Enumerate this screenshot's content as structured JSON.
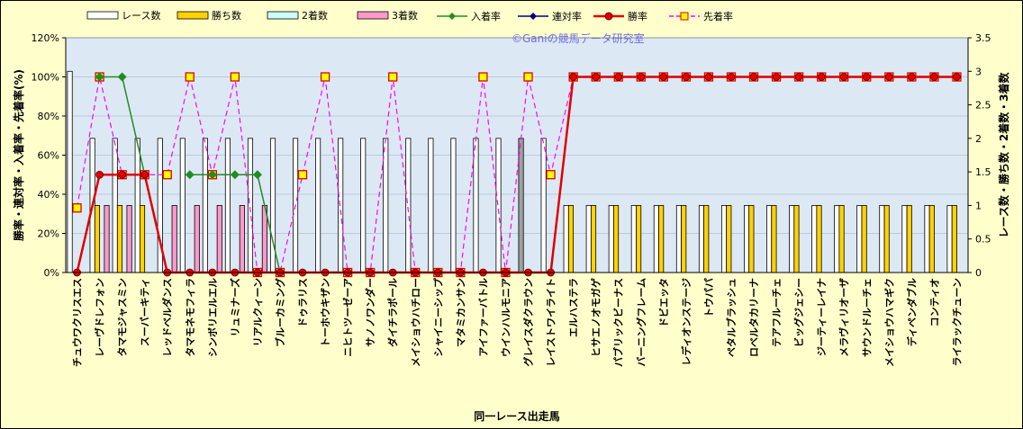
{
  "chart_data": {
    "type": "bar",
    "watermark": "©Ganiの競馬データ研究室",
    "xlabel": "同一レース出走馬",
    "ylabel_left": "勝率・連対率・入着率・先着率(%)",
    "ylabel_right": "レース数・勝ち数・2着数・3着数",
    "ylim_left": [
      0,
      120
    ],
    "ylim_right": [
      0,
      3.5
    ],
    "yticks_left": [
      "0%",
      "20%",
      "40%",
      "60%",
      "80%",
      "100%",
      "120%"
    ],
    "yticks_right": [
      "0",
      "0.5",
      "1",
      "1.5",
      "2",
      "2.5",
      "3",
      "3.5"
    ],
    "grid": true,
    "legend_position": "top",
    "colors": {
      "plot_bg": "#dce9f5",
      "races": "#ffffff",
      "wins": "#ffd200",
      "second": "#ccffff",
      "third": "#ff99cc",
      "in_place": "#228b22",
      "quinella": "#000080",
      "win_rate": "#e00000",
      "ahead": "#ff00ff",
      "ahead_marker": "#ffff00"
    },
    "legend": [
      "レース数",
      "勝ち数",
      "2着数",
      "3着数",
      "入着率",
      "連対率",
      "勝率",
      "先着率"
    ],
    "categories": [
      "チュウワクリスエス",
      "レーヴドレフォン",
      "タマモジャスミン",
      "スーパーキティ",
      "レッドベルダンス",
      "タマモネモフィラ",
      "シンボリエルエル",
      "リュミナーズ",
      "リアルクィーン",
      "ブルーカミング",
      "ドゥラリス",
      "トーホウキザン",
      "ニヒトツーゼーア",
      "サノノワンダー",
      "ダイチラポール",
      "メイショウハチロー",
      "シャイニーシップ",
      "マタミカンサン",
      "アイファーバトル",
      "ウインハルモニア",
      "グレイスダクラウン",
      "レイストワイライト",
      "エルハステラ",
      "ヒサエノオモガゲ",
      "パブリックビーナス",
      "バーニングフレーム",
      "ドビエッタ",
      "レディオンステージ",
      "トウパパ",
      "ペタルブラッシュ",
      "ロベルタカリーナ",
      "テアフルーチェ",
      "ビッグジェシー",
      "ジーティーレイナ",
      "メラヴィリオーザ",
      "サウンドルーチェ",
      "メイショウハマギク",
      "ディペンダブル",
      "コンティオ",
      "ライラックチューン"
    ],
    "series": [
      {
        "name": "レース数",
        "kind": "bar",
        "values": [
          3,
          2,
          2,
          2,
          2,
          2,
          2,
          2,
          2,
          2,
          2,
          2,
          2,
          2,
          2,
          2,
          2,
          2,
          2,
          2,
          2,
          2,
          1,
          1,
          1,
          1,
          1,
          1,
          1,
          1,
          1,
          1,
          1,
          1,
          1,
          1,
          1,
          1,
          1,
          1
        ]
      },
      {
        "name": "勝ち数",
        "kind": "bar",
        "values": [
          0,
          1,
          1,
          1,
          0,
          0,
          0,
          0,
          0,
          0,
          0,
          0,
          0,
          0,
          0,
          0,
          0,
          0,
          0,
          0,
          0,
          0,
          1,
          1,
          1,
          1,
          1,
          1,
          1,
          1,
          1,
          1,
          1,
          1,
          1,
          1,
          1,
          1,
          1,
          1
        ]
      },
      {
        "name": "2着数",
        "kind": "bar",
        "values": [
          0,
          0,
          0,
          0,
          0,
          0,
          0,
          0,
          0,
          0,
          0,
          0,
          0,
          0,
          0,
          0,
          0,
          0,
          0,
          0,
          0,
          0,
          0,
          0,
          0,
          0,
          0,
          0,
          0,
          0,
          0,
          0,
          0,
          0,
          0,
          0,
          0,
          0,
          0,
          0
        ]
      },
      {
        "name": "3着数",
        "kind": "bar",
        "values": [
          0,
          1,
          1,
          0,
          1,
          1,
          1,
          1,
          1,
          0,
          0,
          0,
          0,
          0,
          0,
          0,
          0,
          0,
          0,
          0,
          0,
          0,
          0,
          0,
          0,
          0,
          0,
          0,
          0,
          0,
          0,
          0,
          0,
          0,
          0,
          0,
          0,
          0,
          0,
          0
        ]
      },
      {
        "name": "入着率",
        "kind": "line",
        "values": [
          null,
          100,
          100,
          50,
          null,
          50,
          50,
          50,
          50,
          0,
          null,
          null,
          null,
          null,
          null,
          null,
          null,
          null,
          null,
          null,
          null,
          null,
          null,
          null,
          null,
          null,
          null,
          null,
          null,
          null,
          null,
          null,
          null,
          null,
          null,
          null,
          null,
          null,
          null,
          null
        ]
      },
      {
        "name": "連対率",
        "kind": "line",
        "values": [
          0,
          50,
          50,
          50,
          0,
          0,
          0,
          0,
          0,
          0,
          0,
          0,
          0,
          0,
          0,
          0,
          0,
          0,
          0,
          0,
          0,
          0,
          100,
          100,
          100,
          100,
          100,
          100,
          100,
          100,
          100,
          100,
          100,
          100,
          100,
          100,
          100,
          100,
          100,
          100
        ]
      },
      {
        "name": "勝率",
        "kind": "line",
        "values": [
          0,
          50,
          50,
          50,
          0,
          0,
          0,
          0,
          0,
          0,
          0,
          0,
          0,
          0,
          0,
          0,
          0,
          0,
          0,
          0,
          0,
          0,
          100,
          100,
          100,
          100,
          100,
          100,
          100,
          100,
          100,
          100,
          100,
          100,
          100,
          100,
          100,
          100,
          100,
          100
        ]
      },
      {
        "name": "先着率",
        "kind": "line",
        "values": [
          33,
          100,
          50,
          50,
          50,
          100,
          50,
          100,
          0,
          0,
          50,
          100,
          0,
          0,
          100,
          0,
          0,
          0,
          100,
          0,
          100,
          50,
          100,
          100,
          100,
          100,
          100,
          100,
          100,
          100,
          100,
          100,
          100,
          100,
          100,
          100,
          100,
          100,
          100,
          100
        ]
      }
    ]
  }
}
